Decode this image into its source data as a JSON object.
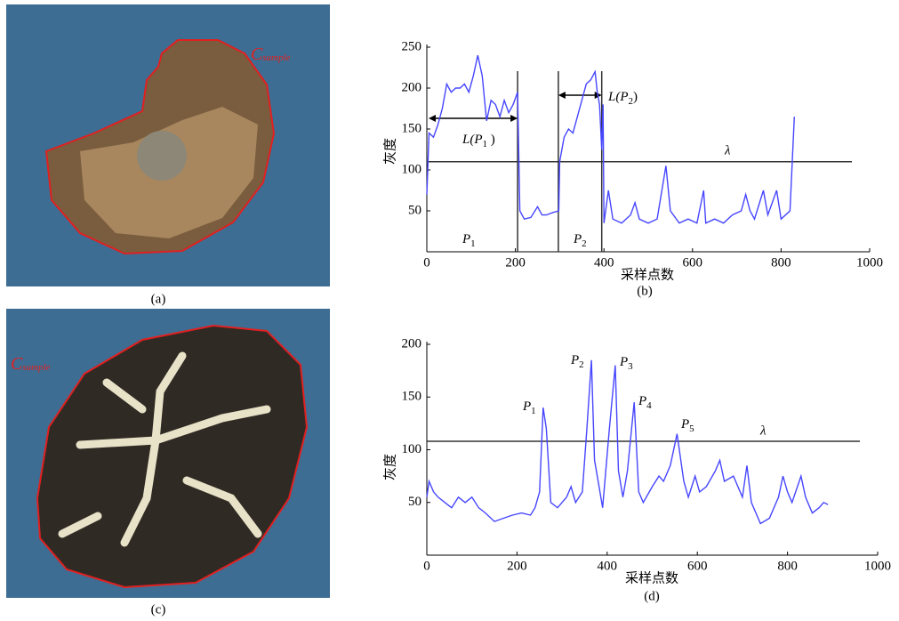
{
  "panels": [
    {
      "caption": "(a)",
      "label": {
        "text": "C",
        "sub": "sample"
      }
    },
    {
      "caption": "(c)",
      "label": {
        "text": "C",
        "sub": "sample"
      }
    }
  ],
  "chart_data": [
    {
      "type": "line",
      "caption": "(b)",
      "x_label": "采样点数",
      "y_label": "灰度",
      "xlim": [
        0,
        1000
      ],
      "xticks": [
        0,
        200,
        400,
        600,
        800,
        1000
      ],
      "ylim": [
        0,
        250
      ],
      "yticks": [
        50,
        100,
        150,
        200,
        250
      ],
      "x": [
        0,
        5,
        15,
        25,
        35,
        45,
        55,
        65,
        75,
        85,
        95,
        105,
        115,
        125,
        135,
        145,
        155,
        165,
        175,
        185,
        195,
        205,
        210,
        220,
        235,
        250,
        260,
        270,
        285,
        298,
        300,
        310,
        320,
        330,
        340,
        350,
        360,
        370,
        380,
        385,
        390,
        395,
        398,
        400,
        410,
        420,
        440,
        460,
        470,
        480,
        500,
        520,
        540,
        550,
        570,
        590,
        610,
        625,
        630,
        650,
        670,
        690,
        710,
        720,
        730,
        740,
        760,
        770,
        790,
        800,
        820,
        830
      ],
      "series": [
        {
          "color": "#4646ff",
          "values": [
            70,
            145,
            140,
            155,
            175,
            205,
            195,
            200,
            200,
            205,
            195,
            215,
            240,
            215,
            160,
            185,
            180,
            165,
            185,
            170,
            180,
            195,
            50,
            40,
            42,
            55,
            45,
            45,
            48,
            50,
            110,
            140,
            150,
            145,
            165,
            185,
            205,
            210,
            220,
            195,
            180,
            125,
            180,
            35,
            75,
            40,
            35,
            45,
            60,
            40,
            35,
            40,
            105,
            50,
            35,
            40,
            35,
            75,
            35,
            40,
            35,
            45,
            50,
            70,
            50,
            40,
            75,
            45,
            75,
            40,
            50,
            165
          ]
        }
      ],
      "threshold": {
        "value": 110,
        "label": "λ"
      },
      "boundaries": [
        205,
        297,
        395
      ],
      "annotations": [
        {
          "text": "L(P",
          "sub": "1",
          "after": " )"
        },
        {
          "text": "L(P",
          "sub": "2",
          "after": ")"
        },
        {
          "text": "P",
          "sub": "1"
        },
        {
          "text": "P",
          "sub": "2"
        }
      ]
    },
    {
      "type": "line",
      "caption": "(d)",
      "x_label": "采样点数",
      "y_label": "灰度",
      "xlim": [
        0,
        1000
      ],
      "xticks": [
        0,
        200,
        400,
        600,
        800,
        1000
      ],
      "ylim": [
        0,
        200
      ],
      "yticks": [
        50,
        100,
        150,
        200
      ],
      "x": [
        0,
        5,
        15,
        25,
        40,
        55,
        70,
        85,
        100,
        115,
        130,
        150,
        170,
        190,
        210,
        230,
        240,
        250,
        258,
        265,
        275,
        290,
        310,
        320,
        330,
        345,
        355,
        365,
        372,
        380,
        390,
        405,
        418,
        425,
        435,
        445,
        460,
        470,
        480,
        500,
        515,
        525,
        540,
        555,
        570,
        580,
        595,
        605,
        620,
        640,
        650,
        660,
        680,
        700,
        710,
        720,
        740,
        760,
        780,
        790,
        800,
        810,
        830,
        840,
        855,
        870,
        880,
        890
      ],
      "series": [
        {
          "color": "#4646ff",
          "values": [
            55,
            70,
            60,
            55,
            50,
            45,
            55,
            50,
            55,
            45,
            40,
            32,
            35,
            38,
            40,
            38,
            45,
            60,
            140,
            120,
            50,
            45,
            55,
            65,
            50,
            60,
            120,
            185,
            90,
            70,
            45,
            120,
            180,
            80,
            55,
            80,
            145,
            60,
            50,
            65,
            75,
            70,
            85,
            115,
            70,
            55,
            75,
            60,
            65,
            80,
            90,
            70,
            75,
            55,
            85,
            50,
            30,
            35,
            55,
            75,
            60,
            50,
            75,
            55,
            40,
            45,
            50,
            48
          ]
        }
      ],
      "threshold": {
        "value": 108,
        "label": "λ"
      },
      "annotations": [
        {
          "text": "P",
          "sub": "1"
        },
        {
          "text": "P",
          "sub": "2"
        },
        {
          "text": "P",
          "sub": "3"
        },
        {
          "text": "P",
          "sub": "4"
        },
        {
          "text": "P",
          "sub": "5"
        }
      ]
    }
  ]
}
